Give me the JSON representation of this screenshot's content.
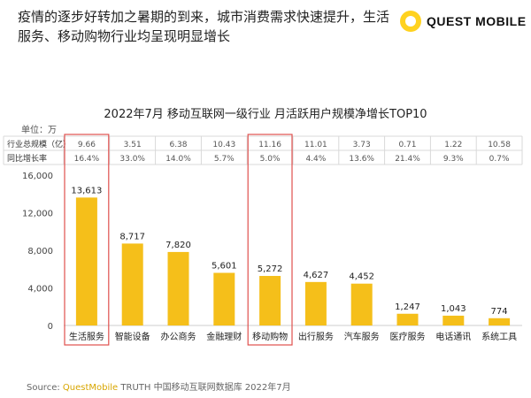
{
  "headline": "疫情的逐步好转加之暑期的到来，城市消费需求快速提升，生活服务、移动购物行业均呈现明显增长",
  "logo": {
    "text": "QUEST MOBILE"
  },
  "unit_label": "单位：万",
  "source": {
    "prefix": "Source:",
    "brand": "QuestMobile",
    "rest": "TRUTH 中国移动互联网数据库 2022年7月"
  },
  "colors": {
    "bar": "#f5bf1a",
    "highlight_box": "#e0504e",
    "table_border": "#d9d9d9",
    "axis_text": "#444444"
  },
  "chart_data": {
    "type": "bar",
    "title": "2022年7月 移动互联网一级行业 月活跃用户规模净增长TOP10",
    "categories": [
      "生活服务",
      "智能设备",
      "办公商务",
      "金融理财",
      "移动购物",
      "出行服务",
      "汽车服务",
      "医疗服务",
      "电话通讯",
      "系统工具"
    ],
    "values": [
      13613,
      8717,
      7820,
      5601,
      5272,
      4627,
      4452,
      1247,
      1043,
      774
    ],
    "value_labels": [
      "13,613",
      "8,717",
      "7,820",
      "5,601",
      "5,272",
      "4,627",
      "4,452",
      "1,247",
      "1,043",
      "774"
    ],
    "ylim": [
      0,
      16000
    ],
    "yticks": [
      "0",
      "4,000",
      "8,000",
      "12,000",
      "16,000"
    ],
    "table_rows": [
      {
        "label": "行业总规模（亿）",
        "values": [
          "9.66",
          "3.51",
          "6.38",
          "10.43",
          "11.16",
          "11.01",
          "3.73",
          "0.71",
          "1.22",
          "10.58"
        ]
      },
      {
        "label": "同比增长率",
        "values": [
          "16.4%",
          "33.0%",
          "14.0%",
          "5.7%",
          "5.0%",
          "4.4%",
          "13.6%",
          "21.4%",
          "9.3%",
          "0.7%"
        ]
      }
    ],
    "highlighted_categories": [
      "生活服务",
      "移动购物"
    ]
  }
}
